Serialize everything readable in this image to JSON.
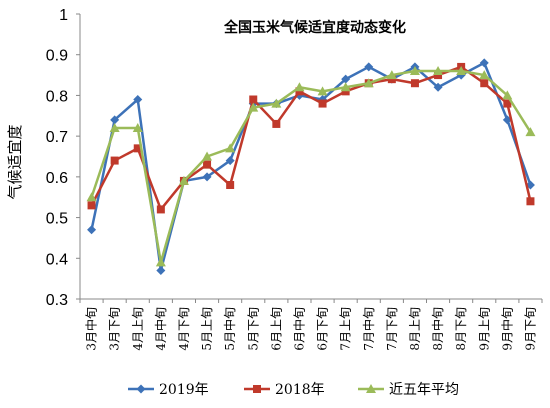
{
  "chart_data": {
    "type": "line",
    "title": "全国玉米气候适宜度动态变化",
    "xlabel": "",
    "ylabel": "气候适宜度",
    "ylim": [
      0.3,
      1.0
    ],
    "yticks": [
      "0.3",
      "0.4",
      "0.5",
      "0.6",
      "0.7",
      "0.8",
      "0.9",
      "1"
    ],
    "grid": false,
    "legend_position": "bottom",
    "categories": [
      "3月中旬",
      "3月下旬",
      "4月上旬",
      "4月中旬",
      "4月下旬",
      "5月上旬",
      "5月中旬",
      "5月下旬",
      "6月上旬",
      "6月中旬",
      "6月下旬",
      "7月上旬",
      "7月中旬",
      "7月下旬",
      "8月上旬",
      "8月中旬",
      "8月下旬",
      "9月上旬",
      "9月中旬",
      "9月下旬"
    ],
    "series": [
      {
        "name": "2019年",
        "color": "#3d72b8",
        "marker": "diamond",
        "values": [
          0.47,
          0.74,
          0.79,
          0.37,
          0.59,
          0.6,
          0.64,
          0.78,
          0.78,
          0.8,
          0.79,
          0.84,
          0.87,
          0.84,
          0.87,
          0.82,
          0.85,
          0.88,
          0.74,
          0.58
        ]
      },
      {
        "name": "2018年",
        "color": "#c0392b",
        "marker": "square",
        "values": [
          0.53,
          0.64,
          0.67,
          0.52,
          0.59,
          0.63,
          0.58,
          0.79,
          0.73,
          0.81,
          0.78,
          0.81,
          0.83,
          0.84,
          0.83,
          0.85,
          0.87,
          0.83,
          0.78,
          0.54
        ]
      },
      {
        "name": "近五年平均",
        "color": "#9bbb59",
        "marker": "triangle",
        "values": [
          0.55,
          0.72,
          0.72,
          0.39,
          0.59,
          0.65,
          0.67,
          0.77,
          0.78,
          0.82,
          0.81,
          0.82,
          0.83,
          0.85,
          0.86,
          0.86,
          0.86,
          0.85,
          0.8,
          0.71
        ]
      }
    ]
  }
}
